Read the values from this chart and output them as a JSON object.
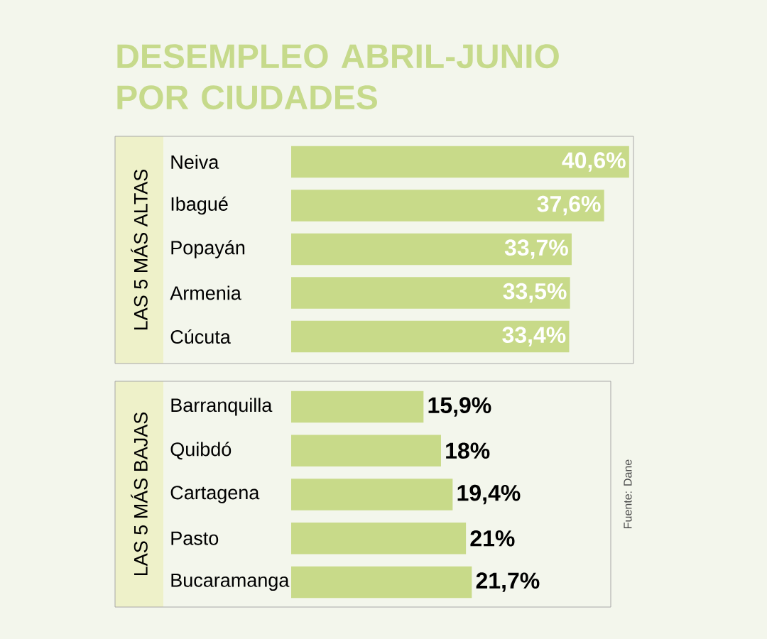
{
  "chart_data": [
    {
      "type": "bar",
      "orientation": "horizontal",
      "title": "DESEMPLEO ABRIL-JUNIO POR CIUDADES",
      "ylabel": "LAS 5 MÁS ALTAS",
      "categories": [
        "Neiva",
        "Ibagué",
        "Popayán",
        "Armenia",
        "Cúcuta"
      ],
      "values": [
        40.6,
        37.6,
        33.7,
        33.5,
        33.4
      ],
      "value_labels": [
        "40,6%",
        "37,6%",
        "33,7%",
        "33,5%",
        "33,4%"
      ],
      "color": "#c8da89",
      "tick_labels": "y"
    },
    {
      "type": "bar",
      "orientation": "horizontal",
      "ylabel": "LAS 5 MÁS BAJAS",
      "categories": [
        "Barranquilla",
        "Quibdó",
        "Cartagena",
        "Pasto",
        "Bucaramanga"
      ],
      "values": [
        15.9,
        18,
        19.4,
        21,
        21.7
      ],
      "value_labels": [
        "15,9%",
        "18%",
        "19,4%",
        "21%",
        "21,7%"
      ],
      "color": "#c8da89",
      "tick_labels": "y",
      "annotations": [
        "Fuente: Dane"
      ]
    }
  ]
}
